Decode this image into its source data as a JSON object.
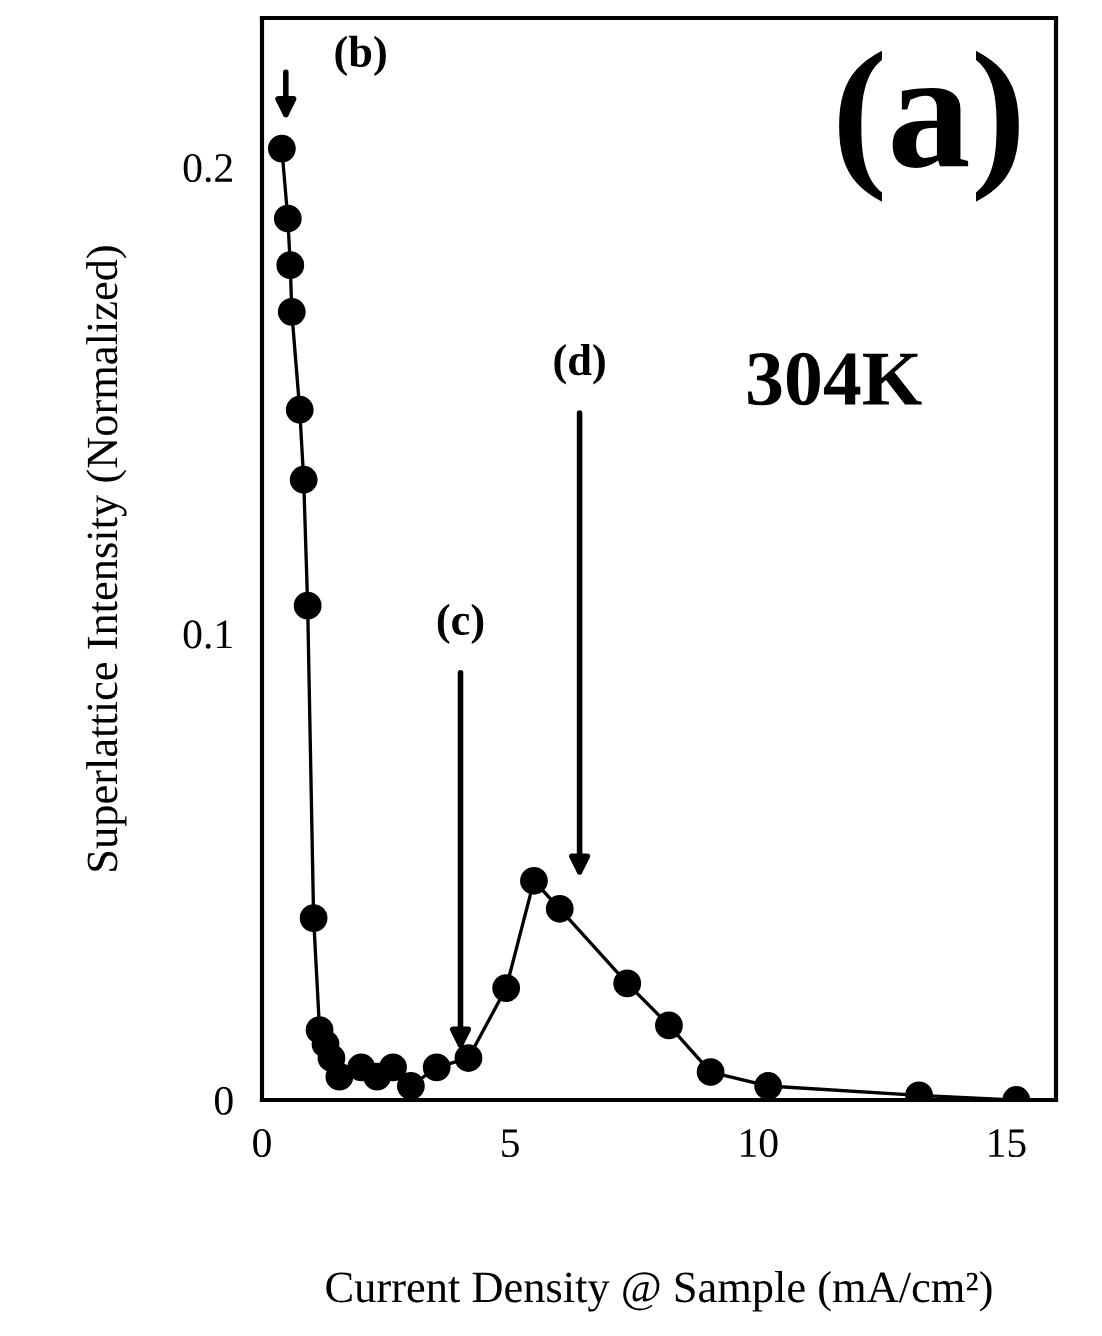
{
  "chart_data": {
    "type": "line",
    "xlabel": "Current Density @ Sample (mA/cm²)",
    "ylabel": "Superlattice Intensity (Normalized)",
    "x": [
      0.4,
      0.52,
      0.57,
      0.6,
      0.76,
      0.84,
      0.92,
      1.04,
      1.16,
      1.28,
      1.4,
      1.56,
      2.0,
      2.32,
      2.64,
      3.0,
      3.52,
      4.16,
      4.92,
      5.48,
      6.0,
      7.36,
      8.2,
      9.04,
      10.2,
      13.24,
      15.2
    ],
    "series": [
      {
        "color": "#000000",
        "values": [
          0.204,
          0.189,
          0.179,
          0.169,
          0.148,
          0.133,
          0.106,
          0.039,
          0.015,
          0.012,
          0.009,
          0.005,
          0.007,
          0.005,
          0.007,
          0.003,
          0.007,
          0.009,
          0.024,
          0.047,
          0.041,
          0.025,
          0.016,
          0.006,
          0.003,
          0.001,
          0.0
        ]
      }
    ],
    "marker": "circle",
    "line_style": "solid",
    "xlim": [
      0,
      16
    ],
    "ylim": [
      0,
      0.232
    ],
    "xticks": [
      0,
      5,
      10,
      15
    ],
    "yticks": [
      0,
      0.1,
      0.2
    ],
    "grid": false,
    "annotations": [
      "(a)",
      "304K",
      "(b)",
      "(c)",
      "(d)"
    ]
  }
}
